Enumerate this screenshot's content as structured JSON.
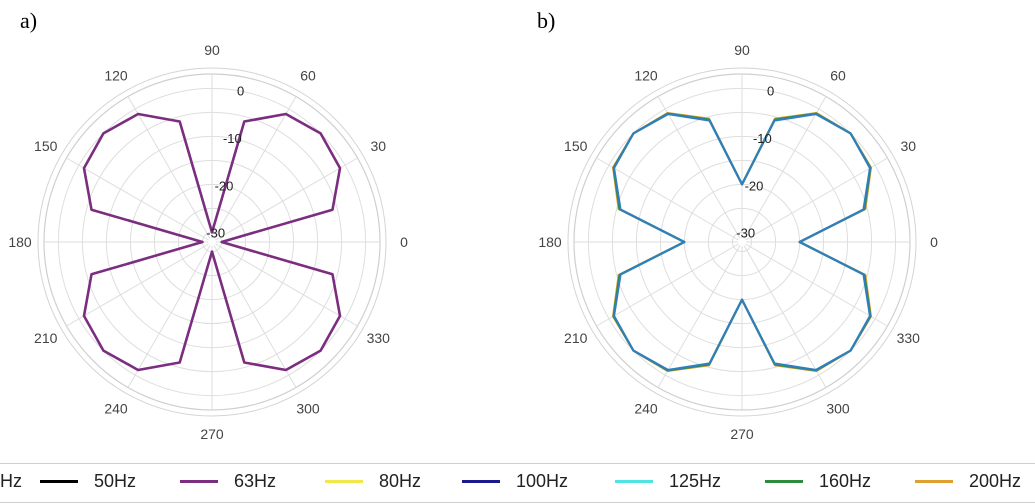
{
  "panels": [
    {
      "label": "a)"
    },
    {
      "label": "b)"
    }
  ],
  "chart_data": [
    {
      "type": "line",
      "subtype": "polar",
      "title": "",
      "angle_ticks_deg": [
        0,
        30,
        60,
        90,
        120,
        150,
        180,
        210,
        240,
        270,
        300,
        330
      ],
      "radial_ticks_db": [
        0,
        -10,
        -20,
        -30
      ],
      "rlim": [
        -32,
        3
      ],
      "grid": true,
      "series": [
        {
          "name": "63Hz",
          "color": "#7b2d7f",
          "theta_deg": [
            0,
            15,
            30,
            45,
            60,
            75,
            90,
            105,
            120,
            135,
            150,
            165,
            180,
            195,
            210,
            225,
            240,
            255,
            270,
            285,
            300,
            315,
            330,
            345
          ],
          "r_db": [
            -30.0,
            -6.0,
            -1.2,
            0.0,
            -1.2,
            -6.0,
            -30.0,
            -6.0,
            -1.2,
            0.0,
            -1.2,
            -6.0,
            -30.0,
            -6.0,
            -1.2,
            0.0,
            -1.2,
            -6.0,
            -30.0,
            -6.0,
            -1.2,
            0.0,
            -1.2,
            -6.0
          ]
        }
      ]
    },
    {
      "type": "line",
      "subtype": "polar",
      "title": "",
      "angle_ticks_deg": [
        0,
        30,
        60,
        90,
        120,
        150,
        180,
        210,
        240,
        270,
        300,
        330
      ],
      "radial_ticks_db": [
        0,
        -10,
        -20,
        -30
      ],
      "rlim": [
        -32,
        3
      ],
      "grid": true,
      "series": [
        {
          "name": "200Hz",
          "color": "#e0a030",
          "theta_deg": [
            0,
            15,
            30,
            45,
            60,
            75,
            90,
            105,
            120,
            135,
            150,
            165,
            180,
            195,
            210,
            225,
            240,
            255,
            270,
            285,
            300,
            315,
            330,
            345
          ],
          "r_db": [
            -20.0,
            -5.4,
            -1.0,
            0.0,
            -1.0,
            -5.4,
            -20.0,
            -5.4,
            -1.0,
            0.0,
            -1.0,
            -5.4,
            -20.0,
            -5.4,
            -1.0,
            0.0,
            -1.0,
            -5.4,
            -20.0,
            -5.4,
            -1.0,
            0.0,
            -1.0,
            -5.4
          ]
        },
        {
          "name": "160Hz",
          "color": "#2e8b3c",
          "theta_deg": [
            0,
            15,
            30,
            45,
            60,
            75,
            90,
            105,
            120,
            135,
            150,
            165,
            180,
            195,
            210,
            225,
            240,
            255,
            270,
            285,
            300,
            315,
            330,
            345
          ],
          "r_db": [
            -20.0,
            -5.6,
            -1.1,
            0.0,
            -1.1,
            -5.6,
            -20.0,
            -5.6,
            -1.1,
            0.0,
            -1.1,
            -5.6,
            -20.0,
            -5.6,
            -1.1,
            0.0,
            -1.1,
            -5.6,
            -20.0,
            -5.6,
            -1.1,
            0.0,
            -1.1,
            -5.6
          ]
        },
        {
          "name": "",
          "color": "#2f7fbf",
          "theta_deg": [
            0,
            15,
            30,
            45,
            60,
            75,
            90,
            105,
            120,
            135,
            150,
            165,
            180,
            195,
            210,
            225,
            240,
            255,
            270,
            285,
            300,
            315,
            330,
            345
          ],
          "r_db": [
            -20.0,
            -5.8,
            -1.2,
            0.0,
            -1.2,
            -5.8,
            -20.0,
            -5.8,
            -1.2,
            0.0,
            -1.2,
            -5.8,
            -20.0,
            -5.8,
            -1.2,
            0.0,
            -1.2,
            -5.8,
            -20.0,
            -5.8,
            -1.2,
            0.0,
            -1.2,
            -5.8
          ]
        }
      ]
    }
  ],
  "legend": {
    "placement": "bottom",
    "items": [
      {
        "label": "Hz",
        "color": ""
      },
      {
        "label": "50Hz",
        "color": "#000000"
      },
      {
        "label": "63Hz",
        "color": "#7b2d7f"
      },
      {
        "label": "80Hz",
        "color": "#f0e84a"
      },
      {
        "label": "100Hz",
        "color": "#1a1a8c"
      },
      {
        "label": "125Hz",
        "color": "#4fe3e3"
      },
      {
        "label": "160Hz",
        "color": "#2e8b3c"
      },
      {
        "label": "200Hz",
        "color": "#e0a030"
      }
    ]
  }
}
